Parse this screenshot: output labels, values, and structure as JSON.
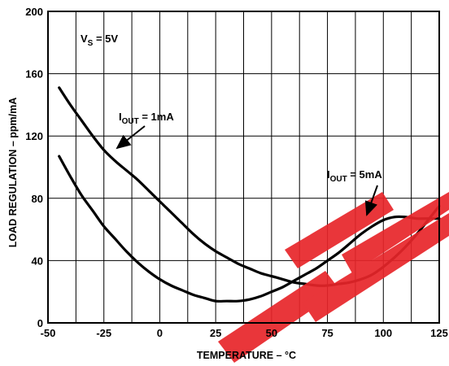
{
  "chart_data": {
    "type": "line",
    "title": "",
    "xlabel": "TEMPERATURE – °C",
    "ylabel": "LOAD REGULATION – ppm/mA",
    "xlim": [
      -50,
      125
    ],
    "ylim": [
      0,
      200
    ],
    "x_ticks": [
      -50,
      -25,
      0,
      25,
      50,
      75,
      100,
      125
    ],
    "y_ticks": [
      0,
      40,
      80,
      120,
      160,
      200
    ],
    "x_grid": [
      -50,
      -37.5,
      -25,
      -12.5,
      0,
      12.5,
      25,
      37.5,
      50,
      62.5,
      75,
      87.5,
      100,
      112.5,
      125
    ],
    "y_grid": [
      0,
      40,
      80,
      120,
      160,
      200
    ],
    "grid": true,
    "legend": "none",
    "series": [
      {
        "name": "IOUT = 1mA",
        "color": "#000000",
        "x": [
          -45,
          -40,
          -35,
          -30,
          -25,
          -20,
          -15,
          -10,
          -5,
          0,
          5,
          10,
          15,
          20,
          25,
          30,
          35,
          40,
          45,
          50,
          55,
          60,
          65,
          70,
          75,
          80,
          85,
          90,
          95,
          100,
          105,
          110,
          115,
          120,
          125
        ],
        "y": [
          151,
          140,
          130,
          120,
          111,
          104,
          98,
          92,
          85,
          78,
          71,
          64,
          57,
          51,
          46,
          42,
          38,
          35,
          32,
          30,
          28,
          26,
          25,
          24,
          24,
          25,
          26,
          28,
          31,
          36,
          42,
          49,
          57,
          66,
          75
        ]
      },
      {
        "name": "IOUT = 5mA",
        "color": "#000000",
        "x": [
          -45,
          -40,
          -35,
          -30,
          -25,
          -20,
          -15,
          -10,
          -5,
          0,
          5,
          10,
          15,
          20,
          25,
          30,
          35,
          40,
          45,
          50,
          55,
          60,
          65,
          70,
          75,
          80,
          85,
          90,
          95,
          100,
          105,
          110,
          115,
          120,
          125
        ],
        "y": [
          107,
          94,
          82,
          72,
          62,
          54,
          46,
          39,
          33,
          28,
          24,
          21,
          18,
          16,
          14,
          14,
          14,
          15,
          17,
          20,
          23,
          27,
          31,
          35,
          40,
          45,
          51,
          57,
          62,
          66,
          68,
          68,
          67,
          67,
          67
        ]
      }
    ],
    "annotations": [
      {
        "text": "V",
        "sub": "S",
        "rest": " = 5V"
      },
      {
        "text": "I",
        "sub": "OUT",
        "rest": " = 1mA"
      },
      {
        "text": "I",
        "sub": "OUT",
        "rest": " = 5mA"
      }
    ]
  }
}
